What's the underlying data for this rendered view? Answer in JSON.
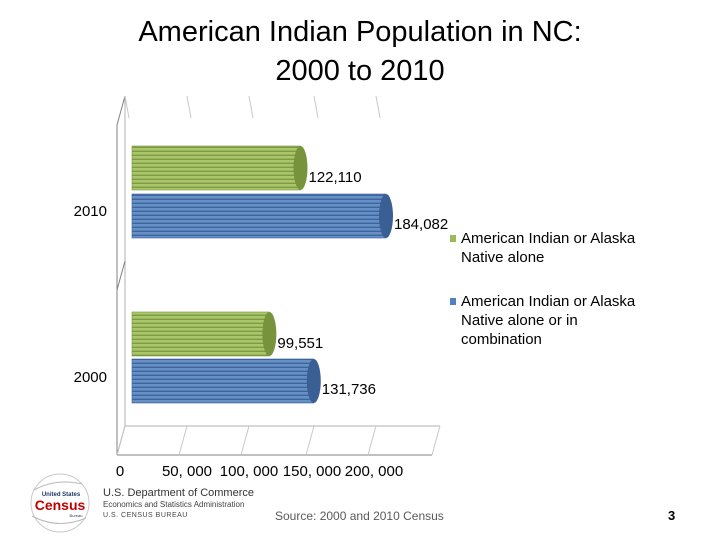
{
  "title_line1": "American Indian Population in NC:",
  "title_line2": "2000 to 2010",
  "chart_data": {
    "type": "bar",
    "orientation": "horizontal",
    "style": "3d-cylinder",
    "title": "American Indian Population in NC: 2000 to 2010",
    "categories": [
      "2010",
      "2000"
    ],
    "series": [
      {
        "name": "American Indian or Alaska Native alone",
        "values": [
          122110,
          99551
        ],
        "color": "#9bbb59"
      },
      {
        "name": "American Indian or Alaska Native alone or in combination",
        "values": [
          184082,
          131736
        ],
        "color": "#4f81bd"
      }
    ],
    "data_labels": [
      [
        "122,110",
        "184,082"
      ],
      [
        "99,551",
        "131,736"
      ]
    ],
    "xlim": [
      0,
      200000
    ],
    "xticks": [
      0,
      50000,
      100000,
      150000,
      200000
    ],
    "xtick_labels": [
      "0",
      "50, 000",
      "100, 000",
      "150, 000",
      "200, 000"
    ],
    "legend_position": "right",
    "grid": false
  },
  "footer": {
    "source": "Source: 2000 and 2010 Census",
    "page_number": "3",
    "logo_line1": "United States",
    "logo_line2": "Census",
    "logo_line3": "Bureau",
    "dept_line1": "U.S. Department of Commerce",
    "dept_line2": "Economics and Statistics Administration",
    "dept_line3": "U.S. CENSUS BUREAU"
  }
}
